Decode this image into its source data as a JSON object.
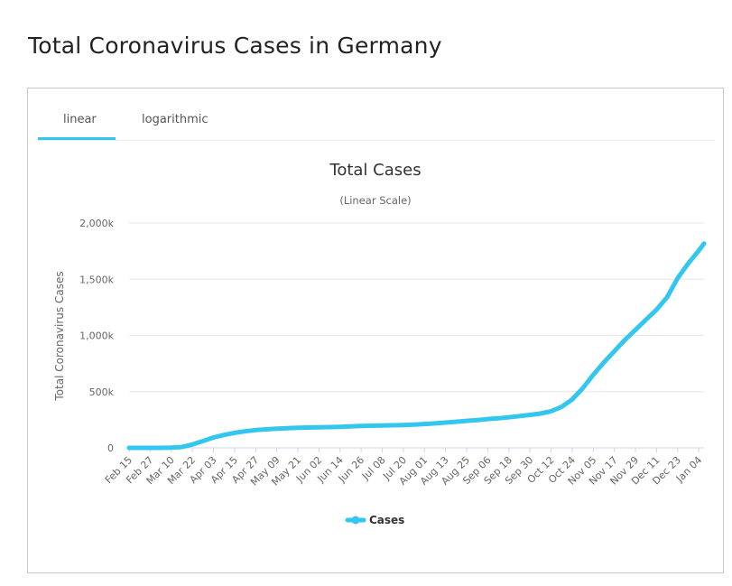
{
  "page": {
    "title": "Total Coronavirus Cases in Germany"
  },
  "tabs": [
    {
      "label": "linear",
      "active": true
    },
    {
      "label": "logarithmic",
      "active": false
    }
  ],
  "colors": {
    "series": "#33c6ee",
    "accent": "#33c6ee"
  },
  "chart_data": {
    "type": "line",
    "title": "Total Cases",
    "subtitle": "(Linear Scale)",
    "ylabel": "Total Coronavirus Cases",
    "xlabel": "",
    "ylim": [
      0,
      2000000
    ],
    "yticks": [
      0,
      500000,
      1000000,
      1500000,
      2000000
    ],
    "ytick_labels": [
      "0",
      "500k",
      "1,000k",
      "1,500k",
      "2,000k"
    ],
    "xtick_labels": [
      "Feb 15",
      "Feb 27",
      "Mar 10",
      "Mar 22",
      "Apr 03",
      "Apr 15",
      "Apr 27",
      "May 09",
      "May 21",
      "Jun 02",
      "Jun 14",
      "Jun 26",
      "Jul 08",
      "Jul 20",
      "Aug 01",
      "Aug 13",
      "Aug 25",
      "Sep 06",
      "Sep 18",
      "Sep 30",
      "Oct 12",
      "Oct 24",
      "Nov 05",
      "Nov 17",
      "Nov 29",
      "Dec 11",
      "Dec 23",
      "Jan 04"
    ],
    "legend": {
      "position": "bottom-center",
      "entries": [
        "Cases"
      ]
    },
    "grid": true,
    "series": [
      {
        "name": "Cases",
        "x": [
          "Feb 15",
          "Feb 21",
          "Feb 27",
          "Mar 04",
          "Mar 10",
          "Mar 16",
          "Mar 22",
          "Mar 28",
          "Apr 03",
          "Apr 09",
          "Apr 15",
          "Apr 21",
          "Apr 27",
          "May 03",
          "May 09",
          "May 15",
          "May 21",
          "May 27",
          "Jun 02",
          "Jun 08",
          "Jun 14",
          "Jun 20",
          "Jun 26",
          "Jul 02",
          "Jul 08",
          "Jul 14",
          "Jul 20",
          "Jul 26",
          "Aug 01",
          "Aug 07",
          "Aug 13",
          "Aug 19",
          "Aug 25",
          "Aug 31",
          "Sep 06",
          "Sep 12",
          "Sep 18",
          "Sep 24",
          "Sep 30",
          "Oct 06",
          "Oct 12",
          "Oct 18",
          "Oct 24",
          "Oct 30",
          "Nov 05",
          "Nov 11",
          "Nov 17",
          "Nov 23",
          "Nov 29",
          "Dec 05",
          "Dec 11",
          "Dec 17",
          "Dec 23",
          "Dec 29",
          "Jan 04",
          "Jan 07"
        ],
        "values": [
          16,
          16,
          18,
          260,
          1500,
          7500,
          30000,
          60000,
          92000,
          115000,
          133000,
          147000,
          158000,
          165000,
          171000,
          175000,
          178000,
          181000,
          183000,
          185000,
          187000,
          190000,
          194000,
          197000,
          199000,
          201000,
          203000,
          207000,
          212000,
          218000,
          225000,
          232000,
          240000,
          247000,
          256000,
          263000,
          272000,
          283000,
          293000,
          305000,
          325000,
          365000,
          430000,
          530000,
          650000,
          760000,
          860000,
          960000,
          1050000,
          1140000,
          1230000,
          1340000,
          1510000,
          1640000,
          1755000,
          1818000
        ]
      }
    ]
  }
}
